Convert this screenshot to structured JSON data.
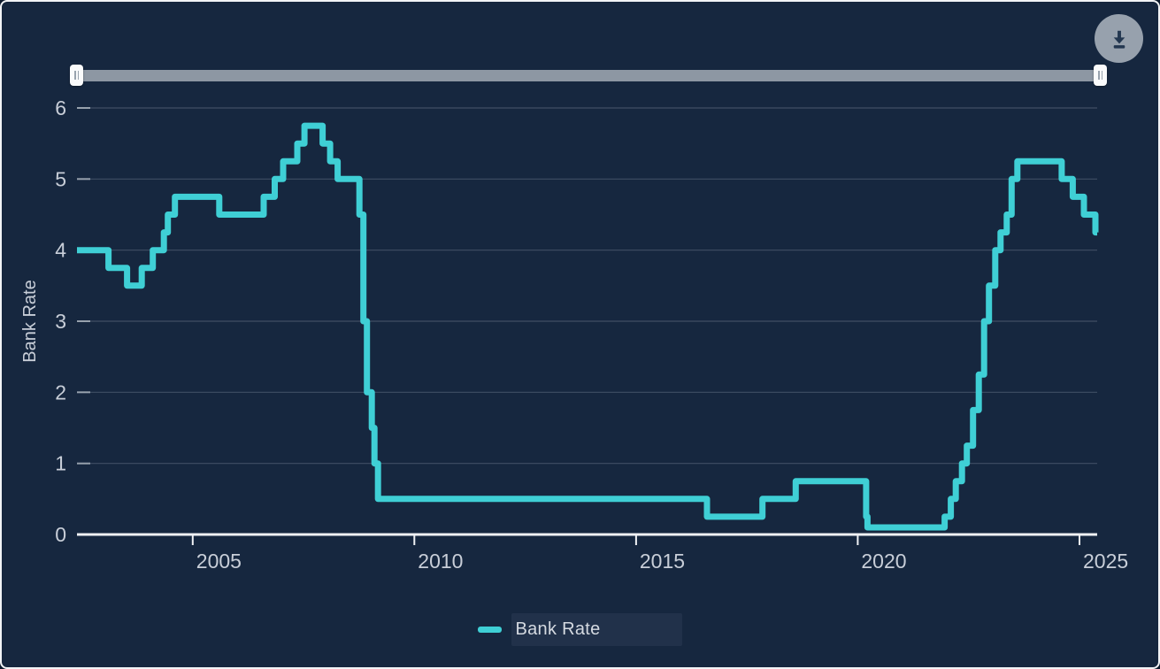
{
  "ui": {
    "download_icon": "arrow-down-to-bar",
    "slider_grip_icon": "vertical-grip-lines"
  },
  "colors": {
    "background": "#16273F",
    "series_line": "#3FCFD5",
    "axis_line": "#F0F2F5",
    "gridline": "rgba(151,163,179,0.32)",
    "tick_label": "#C8CED8",
    "slider_track": "#8D97A3",
    "download_button_bg": "#97A1AD",
    "download_icon_color": "#233750"
  },
  "chart_data": {
    "type": "line",
    "step": true,
    "title": "",
    "xlabel": "",
    "ylabel": "Bank Rate",
    "grid": true,
    "legend_position": "bottom",
    "x_ticks": [
      2005,
      2010,
      2015,
      2020,
      2025
    ],
    "y_ticks": [
      0,
      1,
      2,
      3,
      4,
      5,
      6
    ],
    "xlim": [
      2002.39,
      2025.4
    ],
    "ylim": [
      0,
      6
    ],
    "series": [
      {
        "name": "Bank Rate",
        "color": "#3FCFD5",
        "points": [
          [
            2002.39,
            4.0
          ],
          [
            2003.1,
            3.75
          ],
          [
            2003.52,
            3.5
          ],
          [
            2003.85,
            3.75
          ],
          [
            2004.1,
            4.0
          ],
          [
            2004.35,
            4.25
          ],
          [
            2004.44,
            4.5
          ],
          [
            2004.6,
            4.75
          ],
          [
            2005.6,
            4.5
          ],
          [
            2006.6,
            4.75
          ],
          [
            2006.85,
            5.0
          ],
          [
            2007.04,
            5.25
          ],
          [
            2007.36,
            5.5
          ],
          [
            2007.52,
            5.75
          ],
          [
            2007.93,
            5.5
          ],
          [
            2008.1,
            5.25
          ],
          [
            2008.27,
            5.0
          ],
          [
            2008.76,
            4.5
          ],
          [
            2008.85,
            3.0
          ],
          [
            2008.93,
            2.0
          ],
          [
            2009.04,
            1.5
          ],
          [
            2009.1,
            1.0
          ],
          [
            2009.18,
            0.5
          ],
          [
            2016.6,
            0.25
          ],
          [
            2017.85,
            0.5
          ],
          [
            2018.6,
            0.75
          ],
          [
            2020.19,
            0.25
          ],
          [
            2020.22,
            0.1
          ],
          [
            2021.96,
            0.25
          ],
          [
            2022.1,
            0.5
          ],
          [
            2022.21,
            0.75
          ],
          [
            2022.35,
            1.0
          ],
          [
            2022.46,
            1.25
          ],
          [
            2022.6,
            1.75
          ],
          [
            2022.73,
            2.25
          ],
          [
            2022.85,
            3.0
          ],
          [
            2022.96,
            3.5
          ],
          [
            2023.1,
            4.0
          ],
          [
            2023.22,
            4.25
          ],
          [
            2023.36,
            4.5
          ],
          [
            2023.47,
            5.0
          ],
          [
            2023.6,
            5.25
          ],
          [
            2024.6,
            5.0
          ],
          [
            2024.85,
            4.75
          ],
          [
            2025.1,
            4.5
          ],
          [
            2025.36,
            4.25
          ]
        ]
      }
    ]
  }
}
